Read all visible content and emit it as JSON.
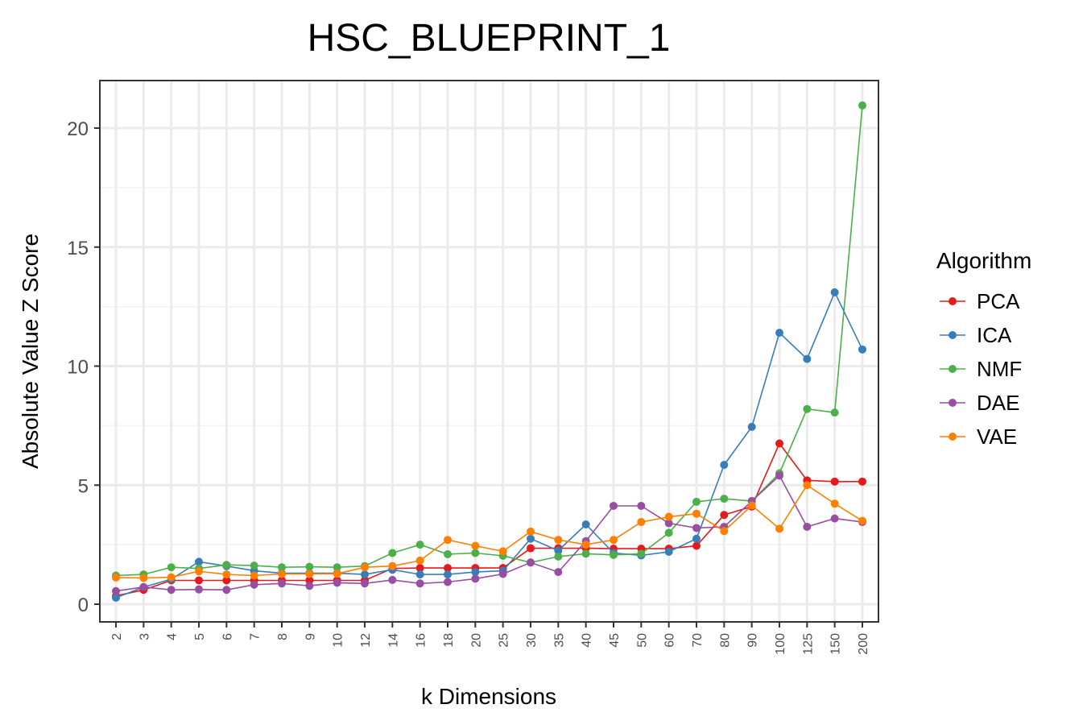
{
  "chart_data": {
    "type": "line",
    "title": "HSC_BLUEPRINT_1",
    "xlabel": "k Dimensions",
    "ylabel": "Absolute Value Z Score",
    "categories": [
      "2",
      "3",
      "4",
      "5",
      "6",
      "7",
      "8",
      "9",
      "10",
      "12",
      "14",
      "16",
      "18",
      "20",
      "25",
      "30",
      "35",
      "40",
      "45",
      "50",
      "60",
      "70",
      "80",
      "90",
      "100",
      "125",
      "150",
      "200"
    ],
    "ylim": [
      -0.8,
      22
    ],
    "yticks": [
      0,
      5,
      10,
      15,
      20
    ],
    "grid": true,
    "legend": {
      "title": "Algorithm",
      "placement": "right"
    },
    "series": [
      {
        "name": "PCA",
        "color": "#E41A1C",
        "values": [
          0.35,
          0.6,
          1.0,
          1.0,
          1.0,
          1.0,
          1.0,
          1.0,
          1.0,
          1.0,
          1.5,
          1.52,
          1.52,
          1.52,
          1.52,
          2.35,
          2.35,
          2.35,
          2.33,
          2.33,
          2.33,
          2.45,
          3.75,
          4.1,
          6.75,
          5.2,
          5.15,
          5.15
        ]
      },
      {
        "name": "ICA",
        "color": "#377EB8",
        "values": [
          0.27,
          0.72,
          1.05,
          1.78,
          1.6,
          1.4,
          1.3,
          1.3,
          1.3,
          1.25,
          1.45,
          1.25,
          1.25,
          1.35,
          1.4,
          2.75,
          2.25,
          3.35,
          2.15,
          2.05,
          2.2,
          2.75,
          5.85,
          7.45,
          11.4,
          10.3,
          13.1,
          10.7
        ]
      },
      {
        "name": "NMF",
        "color": "#4DAF4A",
        "values": [
          1.2,
          1.25,
          1.55,
          1.5,
          1.65,
          1.62,
          1.55,
          1.57,
          1.55,
          1.6,
          2.15,
          2.5,
          2.1,
          2.15,
          2.03,
          1.75,
          2.0,
          2.12,
          2.07,
          2.12,
          3.0,
          4.3,
          4.43,
          4.33,
          5.5,
          8.2,
          8.05,
          20.95
        ]
      },
      {
        "name": "DAE",
        "color": "#984EA3",
        "values": [
          0.55,
          0.72,
          0.6,
          0.62,
          0.6,
          0.82,
          0.87,
          0.77,
          0.9,
          0.87,
          1.02,
          0.87,
          0.93,
          1.07,
          1.27,
          1.75,
          1.35,
          2.65,
          4.13,
          4.13,
          3.4,
          3.2,
          3.25,
          4.33,
          5.4,
          3.25,
          3.6,
          3.45
        ]
      },
      {
        "name": "VAE",
        "color": "#FF7F00",
        "values": [
          1.12,
          1.1,
          1.13,
          1.38,
          1.25,
          1.2,
          1.27,
          1.27,
          1.28,
          1.55,
          1.6,
          1.83,
          2.7,
          2.45,
          2.22,
          3.05,
          2.7,
          2.5,
          2.7,
          3.45,
          3.67,
          3.8,
          3.07,
          4.15,
          3.17,
          5.0,
          4.22,
          3.5
        ]
      }
    ]
  }
}
